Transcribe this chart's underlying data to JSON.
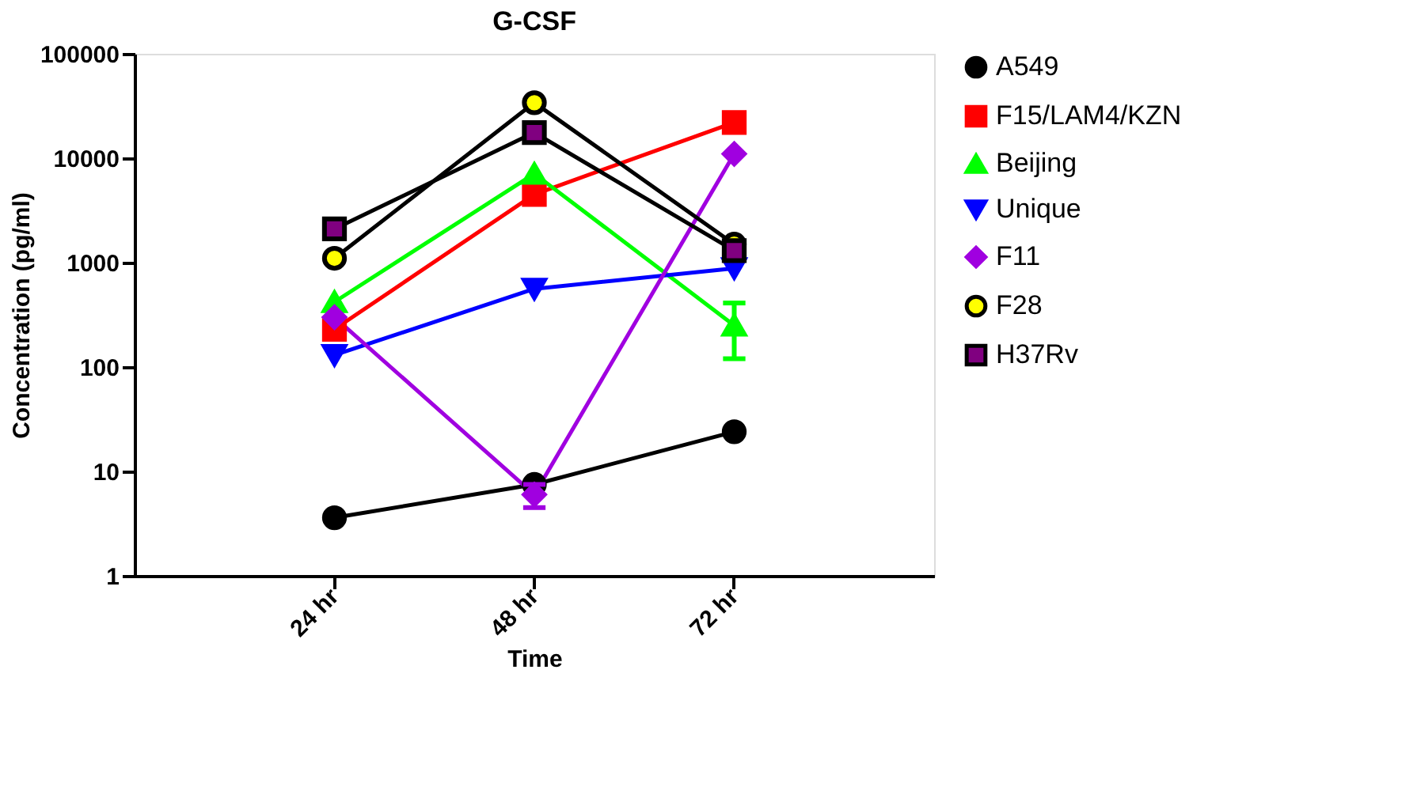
{
  "chart_data": {
    "type": "line",
    "title": "G-CSF",
    "xlabel": "Time",
    "ylabel": "Concentration (pg/ml)",
    "categories": [
      "24 hr",
      "48 hr",
      "72 hr"
    ],
    "log": "y",
    "ylim": [
      1,
      100000
    ],
    "yticks": [
      1,
      10,
      100,
      1000,
      10000,
      100000
    ],
    "grid": false,
    "legend": "right",
    "series": [
      {
        "name": "A549",
        "color": "#000000",
        "marker": "circle",
        "values": [
          3.6,
          7.5,
          24
        ]
      },
      {
        "name": "F15/LAM4/KZN",
        "color": "#ff0000",
        "marker": "square",
        "values": [
          230,
          4500,
          22000
        ]
      },
      {
        "name": "Beijing",
        "color": "#00ff00",
        "marker": "triangle",
        "values": [
          420,
          7100,
          250
        ],
        "errors": [
          null,
          null,
          [
            120,
            410
          ]
        ]
      },
      {
        "name": "Unique",
        "color": "#0000ff",
        "marker": "triangle-down",
        "values": [
          130,
          560,
          880
        ]
      },
      {
        "name": "F11",
        "color": "#a000e0",
        "marker": "diamond",
        "values": [
          300,
          6,
          11000
        ],
        "errors": [
          null,
          [
            4.5,
            7.5
          ],
          null
        ]
      },
      {
        "name": "F28",
        "color": "#000000",
        "marker": "circle",
        "colors": [
          "#ffff00",
          "#ffff00",
          "#ffff00"
        ],
        "values": [
          1100,
          34000,
          1500
        ]
      },
      {
        "name": "H37Rv",
        "color": "#000000",
        "marker": "square",
        "colors": [
          "#800080",
          "#800080",
          "#800080"
        ],
        "values": [
          2100,
          17600,
          1300
        ]
      }
    ]
  }
}
